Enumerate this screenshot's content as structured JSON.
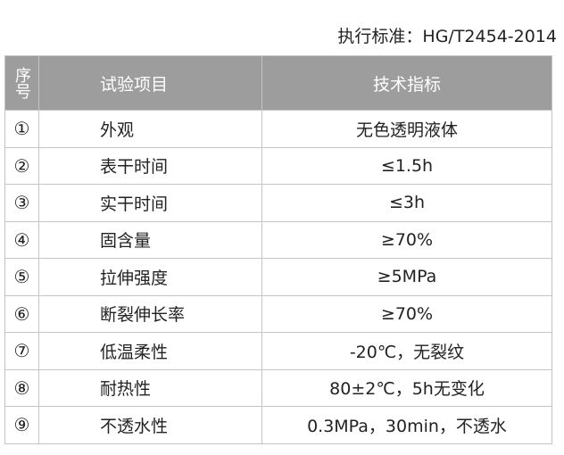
{
  "standard": "执行标准：HG/T2454-2014",
  "table": {
    "headers": [
      "序号",
      "试验项目",
      "技术指标"
    ],
    "rows": [
      {
        "no": "①",
        "item": "外观",
        "value": "无色透明液体"
      },
      {
        "no": "②",
        "item": "表干时间",
        "value": "≤1.5h"
      },
      {
        "no": "③",
        "item": "实干时间",
        "value": "≤3h"
      },
      {
        "no": "④",
        "item": "固含量",
        "value": "≥70%"
      },
      {
        "no": "⑤",
        "item": "拉伸强度",
        "value": "≥5MPa"
      },
      {
        "no": "⑥",
        "item": "断裂伸长率",
        "value": "≥70%"
      },
      {
        "no": "⑦",
        "item": "低温柔性",
        "value": "-20℃，无裂纹"
      },
      {
        "no": "⑧",
        "item": "耐热性",
        "value": "80±2℃，5h无变化"
      },
      {
        "no": "⑨",
        "item": "不透水性",
        "value": "0.3MPa，30min，不透水"
      }
    ]
  },
  "colors": {
    "header_bg": "#9d9d9d",
    "border": "#c4c4c4"
  }
}
